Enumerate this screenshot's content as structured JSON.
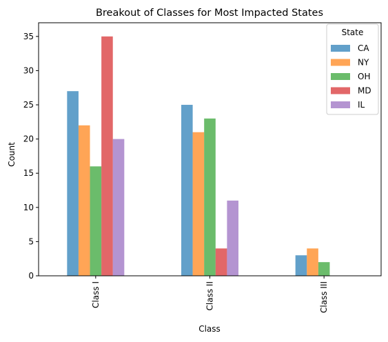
{
  "chart_data": {
    "type": "bar",
    "title": "Breakout of Classes for Most Impacted States",
    "xlabel": "Class",
    "ylabel": "Count",
    "categories": [
      "Class I",
      "Class II",
      "Class III"
    ],
    "ylim": [
      0,
      37
    ],
    "yticks": [
      0,
      5,
      10,
      15,
      20,
      25,
      30,
      35
    ],
    "grid": false,
    "legend": {
      "title": "State",
      "position": "top-right"
    },
    "series": [
      {
        "name": "CA",
        "color": "#1f77b4",
        "values": [
          27,
          25,
          3
        ]
      },
      {
        "name": "NY",
        "color": "#ff7f0e",
        "values": [
          22,
          21,
          4
        ]
      },
      {
        "name": "OH",
        "color": "#2ca02c",
        "values": [
          16,
          23,
          2
        ]
      },
      {
        "name": "MD",
        "color": "#d62728",
        "values": [
          35,
          4,
          0
        ]
      },
      {
        "name": "IL",
        "color": "#9467bd",
        "values": [
          20,
          11,
          0
        ]
      }
    ],
    "bar_opacity": 0.7
  }
}
